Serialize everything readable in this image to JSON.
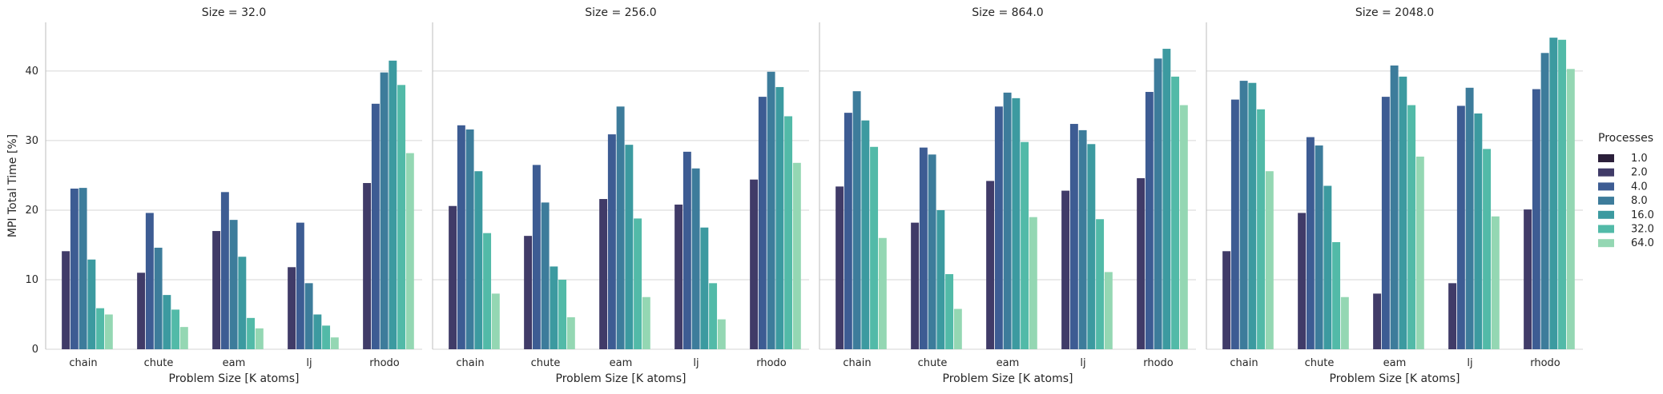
{
  "chart_data": {
    "type": "bar",
    "ylabel": "MPI Total Time [%]",
    "xlabel": "Problem Size [K atoms]",
    "categories": [
      "chain",
      "chute",
      "eam",
      "lj",
      "rhodo"
    ],
    "ylim": [
      0,
      47
    ],
    "yticks": [
      0,
      10,
      20,
      30,
      40
    ],
    "grid": "horizontal",
    "legend": {
      "title": "Processes",
      "placement": "right",
      "entries": [
        "1.0",
        "2.0",
        "4.0",
        "8.0",
        "16.0",
        "32.0",
        "64.0"
      ]
    },
    "colors": [
      "#2b1f3a",
      "#403b68",
      "#3d5c93",
      "#3d7c9b",
      "#3c9aa0",
      "#52baa8",
      "#94d7b3"
    ],
    "panels": [
      {
        "title": "Size = 32.0",
        "series": [
          {
            "name": "1.0",
            "values": [
              null,
              null,
              null,
              null,
              null
            ]
          },
          {
            "name": "2.0",
            "values": [
              14.1,
              11.0,
              17.0,
              11.8,
              23.9
            ]
          },
          {
            "name": "4.0",
            "values": [
              23.1,
              19.6,
              22.6,
              18.2,
              35.3
            ]
          },
          {
            "name": "8.0",
            "values": [
              23.2,
              14.6,
              18.6,
              9.5,
              39.8
            ]
          },
          {
            "name": "16.0",
            "values": [
              12.9,
              7.8,
              13.3,
              5.0,
              41.5
            ]
          },
          {
            "name": "32.0",
            "values": [
              5.9,
              5.7,
              4.5,
              3.4,
              38.0
            ]
          },
          {
            "name": "64.0",
            "values": [
              5.0,
              3.2,
              3.0,
              1.7,
              28.2
            ]
          }
        ]
      },
      {
        "title": "Size = 256.0",
        "series": [
          {
            "name": "1.0",
            "values": [
              null,
              null,
              null,
              null,
              null
            ]
          },
          {
            "name": "2.0",
            "values": [
              20.6,
              16.3,
              21.6,
              20.8,
              24.4
            ]
          },
          {
            "name": "4.0",
            "values": [
              32.2,
              26.5,
              30.9,
              28.4,
              36.3
            ]
          },
          {
            "name": "8.0",
            "values": [
              31.6,
              21.1,
              34.9,
              26.0,
              39.9
            ]
          },
          {
            "name": "16.0",
            "values": [
              25.6,
              11.9,
              29.4,
              17.5,
              37.7
            ]
          },
          {
            "name": "32.0",
            "values": [
              16.7,
              10.0,
              18.8,
              9.5,
              33.5
            ]
          },
          {
            "name": "64.0",
            "values": [
              8.0,
              4.6,
              7.5,
              4.3,
              26.8
            ]
          }
        ]
      },
      {
        "title": "Size = 864.0",
        "series": [
          {
            "name": "1.0",
            "values": [
              null,
              null,
              null,
              null,
              null
            ]
          },
          {
            "name": "2.0",
            "values": [
              23.4,
              18.2,
              24.2,
              22.8,
              24.6
            ]
          },
          {
            "name": "4.0",
            "values": [
              34.0,
              29.0,
              34.9,
              32.4,
              37.0
            ]
          },
          {
            "name": "8.0",
            "values": [
              37.1,
              28.0,
              36.9,
              31.5,
              41.8
            ]
          },
          {
            "name": "16.0",
            "values": [
              32.9,
              20.0,
              36.1,
              29.5,
              43.2
            ]
          },
          {
            "name": "32.0",
            "values": [
              29.1,
              10.8,
              29.8,
              18.7,
              39.2
            ]
          },
          {
            "name": "64.0",
            "values": [
              16.0,
              5.8,
              19.0,
              11.1,
              35.1
            ]
          }
        ]
      },
      {
        "title": "Size = 2048.0",
        "series": [
          {
            "name": "1.0",
            "values": [
              null,
              null,
              null,
              null,
              null
            ]
          },
          {
            "name": "2.0",
            "values": [
              14.1,
              19.6,
              8.0,
              9.5,
              20.1
            ]
          },
          {
            "name": "4.0",
            "values": [
              35.9,
              30.5,
              36.3,
              35.0,
              37.4
            ]
          },
          {
            "name": "8.0",
            "values": [
              38.6,
              29.3,
              40.8,
              37.6,
              42.6
            ]
          },
          {
            "name": "16.0",
            "values": [
              38.3,
              23.5,
              39.2,
              33.9,
              44.8
            ]
          },
          {
            "name": "32.0",
            "values": [
              34.5,
              15.4,
              35.1,
              28.8,
              44.5
            ]
          },
          {
            "name": "64.0",
            "values": [
              25.6,
              7.5,
              27.7,
              19.1,
              40.3
            ]
          }
        ]
      }
    ]
  }
}
